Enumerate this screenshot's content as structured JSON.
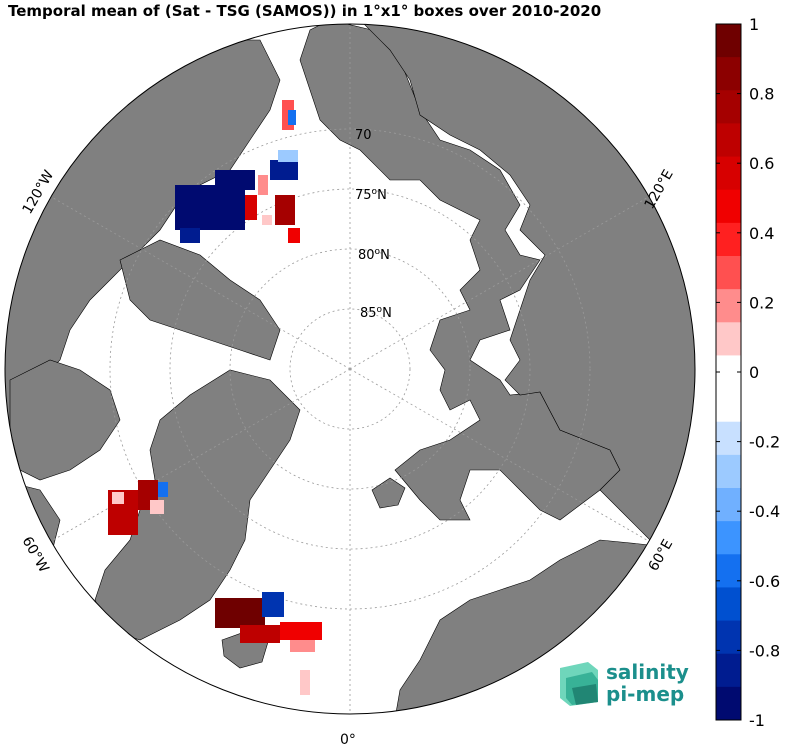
{
  "title": "Temporal mean of (Sat - TSG (SAMOS)) in 1°x1° boxes over 2010-2020",
  "map": {
    "projection": "north-polar-stereographic",
    "lat_labels": [
      "70",
      "75",
      "80",
      "85"
    ],
    "lat_unit": "°N",
    "lon_labels": {
      "w120": "120°W",
      "w60": "60°W",
      "e120": "120°E",
      "e60": "60°E",
      "zero": "0°"
    },
    "colors": {
      "land": "#808080",
      "ocean": "#ffffff",
      "grid": "#9a9a9a"
    }
  },
  "colorbar": {
    "min": -1,
    "max": 1,
    "tick_labels": [
      "1",
      "0.8",
      "0.6",
      "0.4",
      "0.2",
      "0",
      "-0.2",
      "-0.4",
      "-0.6",
      "-0.8",
      "-1"
    ],
    "colors": [
      "#6f0000",
      "#8c0000",
      "#a50000",
      "#be0000",
      "#d70000",
      "#f00000",
      "#ff2020",
      "#ff5050",
      "#ff8c8c",
      "#ffc8c8",
      "#ffffff",
      "#ffffff",
      "#c8e0ff",
      "#9ccaff",
      "#70b0ff",
      "#3c94ff",
      "#1470f0",
      "#0050d0",
      "#0034b0",
      "#001c90",
      "#000a70"
    ]
  },
  "logo": {
    "line1": "salinity",
    "line2": "pi-mep"
  }
}
